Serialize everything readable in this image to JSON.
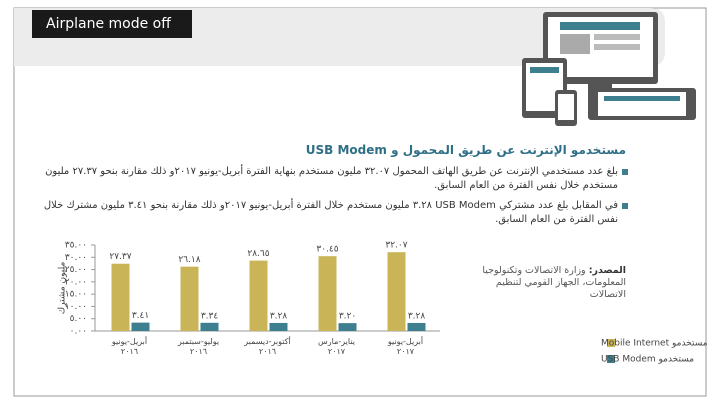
{
  "toast": "Airplane mode off",
  "heading": "مستخدمو الإنترنت عن طريق المحمول و USB Modem",
  "bullets": [
    "بلغ عدد مستخدمي الإنترنت عن طريق الهاتف المحمول ٣٢.٠٧ مليون مستخدم بنهاية الفترة أبريل-يونيو ٢٠١٧و ذلك مقارنة بنحو ٢٧.٣٧ مليون مستخدم خلال نفس الفترة من العام السابق.",
    "في المقابل بلغ عدد مشتركي USB Modem ٣.٢٨ مليون مستخدم خلال الفترة أبريل-يونيو ٢٠١٧و ذلك مقارنة بنحو ٣.٤١ مليون مشترك خلال نفس الفترة من العام السابق."
  ],
  "source": {
    "label": "المصدر:",
    "text": "وزارة الاتصالات وتكنولوجيا المعلومات، الجهاز القومي لتنظيم الاتصالات"
  },
  "chart_data": {
    "type": "bar",
    "y_label": "مليون مشترك",
    "categories": [
      "أبريل-يونيو\n٢٠١٦",
      "يوليو-سبتمبر\n٢٠١٦",
      "أكتوبر-ديسمبر\n٢٠١٦",
      "يناير-مارس\n٢٠١٧",
      "أبريل-يونيو\n٢٠١٧"
    ],
    "series": [
      {
        "name": "مستخدمو Mobile Internet",
        "color": "#c9b458",
        "values": [
          27.37,
          26.18,
          28.65,
          30.45,
          32.07
        ],
        "value_labels": [
          "٢٧.٣٧",
          "٢٦.١٨",
          "٢٨.٦٥",
          "٣٠.٤٥",
          "٣٢.٠٧"
        ]
      },
      {
        "name": "مستخدمو USB Modem",
        "color": "#3e7f8f",
        "values": [
          3.41,
          3.34,
          3.28,
          3.2,
          3.28
        ],
        "value_labels": [
          "٣.٤١",
          "٣.٣٤",
          "٣.٢٨",
          "٣.٢٠",
          "٣.٢٨"
        ]
      }
    ],
    "ylim": [
      0,
      35
    ],
    "yticks": [
      {
        "value": 0,
        "label": "٠.٠٠"
      },
      {
        "value": 5,
        "label": "٥.٠٠"
      },
      {
        "value": 10,
        "label": "١٠.٠٠"
      },
      {
        "value": 15,
        "label": "١٥.٠٠"
      },
      {
        "value": 20,
        "label": "٢٠.٠٠"
      },
      {
        "value": 25,
        "label": "٢٥.٠٠"
      },
      {
        "value": 30,
        "label": "٣٠.٠٠"
      },
      {
        "value": 35,
        "label": "٣٥.٠٠"
      }
    ]
  }
}
